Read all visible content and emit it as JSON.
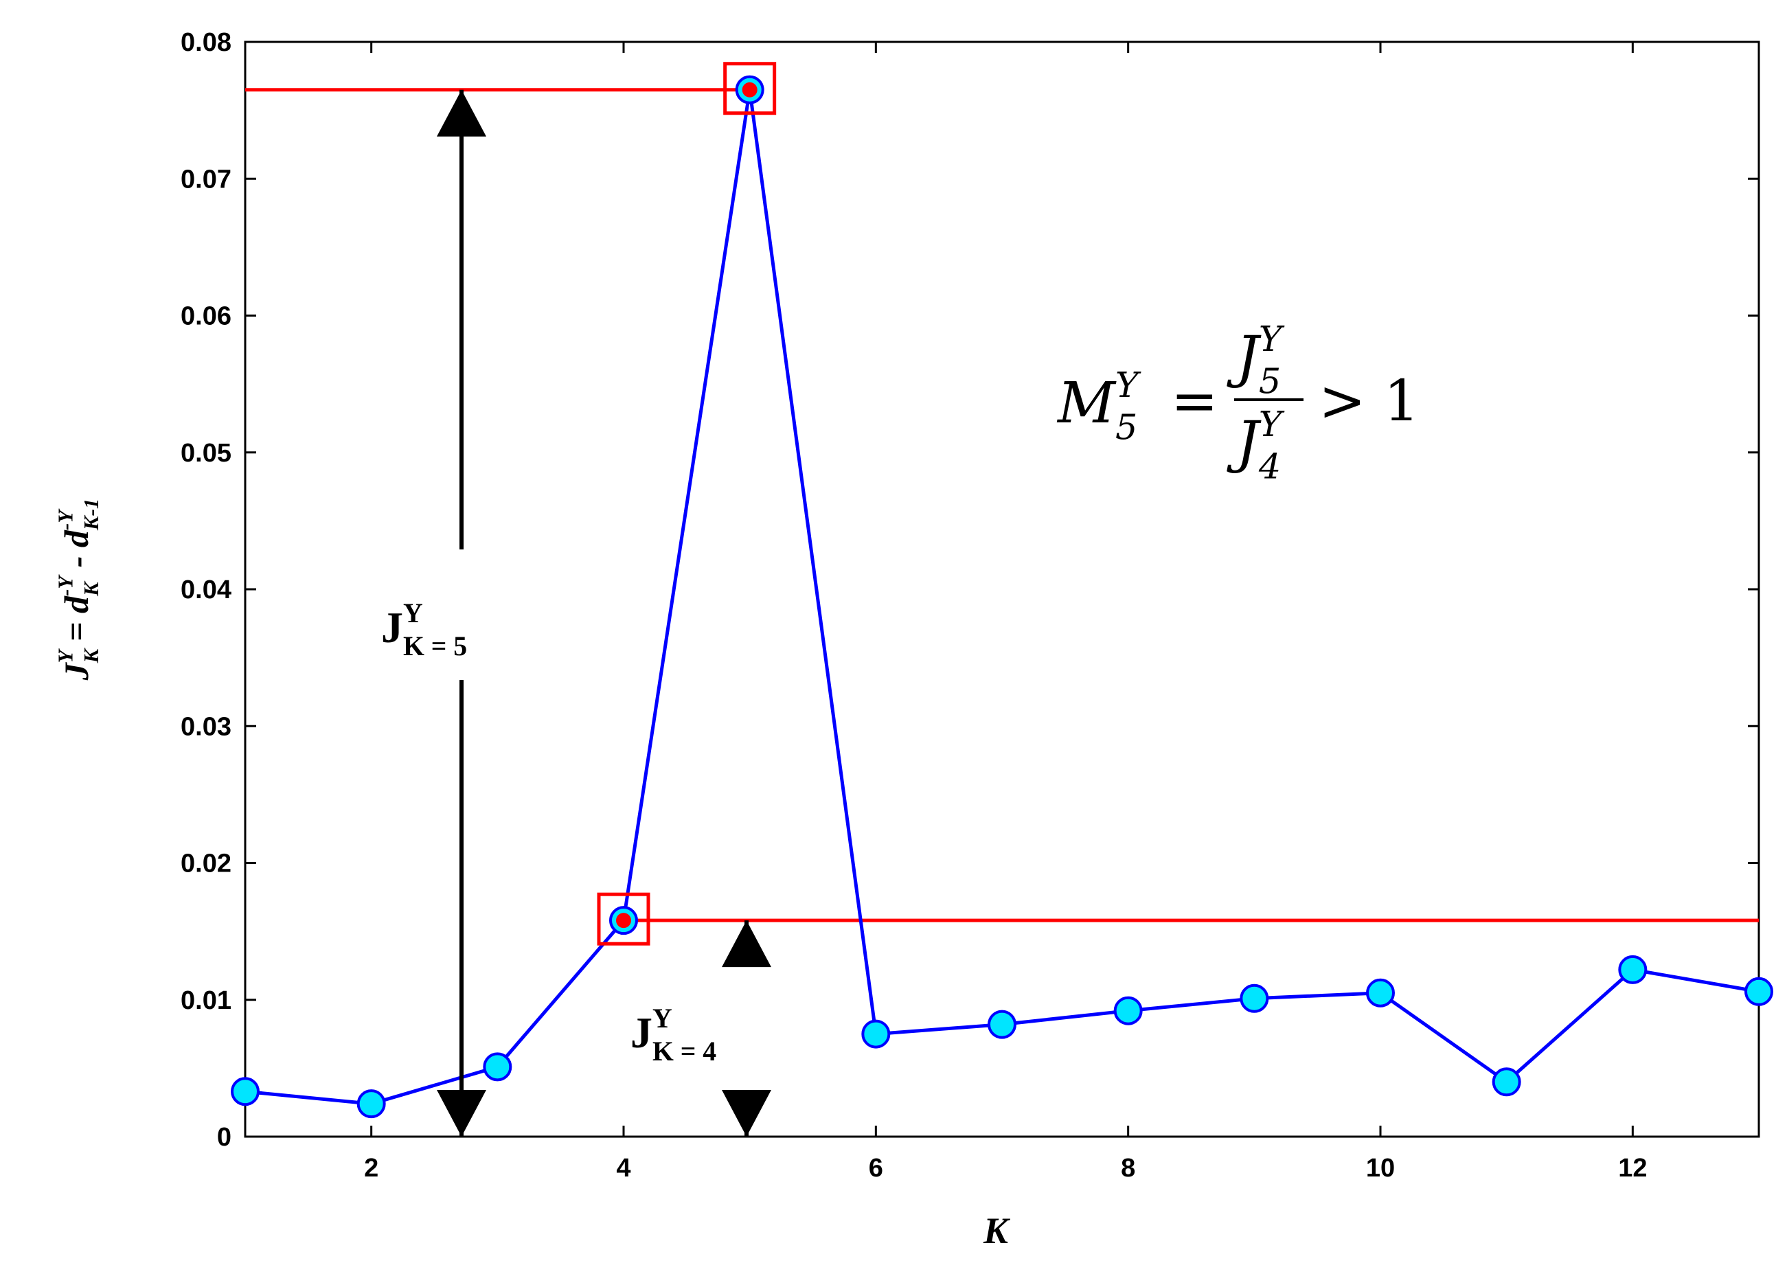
{
  "chart_data": {
    "type": "line",
    "x_label": "K",
    "y_label": [
      {
        "text": "J",
        "pos": "base"
      },
      {
        "text": "K",
        "pos": "sub"
      },
      {
        "text": "Y",
        "pos": "sup"
      },
      {
        "text": " = d",
        "pos": "base"
      },
      {
        "text": "K",
        "pos": "sub"
      },
      {
        "text": "-Y",
        "pos": "sup"
      },
      {
        "text": " - d",
        "pos": "base"
      },
      {
        "text": "K-1",
        "pos": "sub"
      },
      {
        "text": "-Y",
        "pos": "sup"
      }
    ],
    "x": [
      1,
      2,
      3,
      4,
      5,
      6,
      7,
      8,
      9,
      10,
      11,
      12,
      13
    ],
    "series": [
      {
        "color": "#0000ff",
        "marker_color": "#00e5ff",
        "values": [
          0.0033,
          0.0024,
          0.0051,
          0.0158,
          0.0765,
          0.0075,
          0.0082,
          0.0092,
          0.0101,
          0.0105,
          0.004,
          0.0122,
          0.0106
        ]
      }
    ],
    "highlight_color": "#ff0000",
    "highlight_points": [
      3,
      4
    ],
    "xlim": [
      1,
      13
    ],
    "xticks": [
      2,
      4,
      6,
      8,
      10,
      12
    ],
    "ylim": [
      0,
      0.08
    ],
    "yticks": [
      0,
      0.01,
      0.02,
      0.03,
      0.04,
      0.05,
      0.06,
      0.07,
      0.08
    ],
    "annotations": [
      [
        {
          "text": "J",
          "pos": "base"
        },
        {
          "text": "K = 5",
          "pos": "sub"
        },
        {
          "text": "Y",
          "pos": "sup"
        }
      ],
      [
        {
          "text": "J",
          "pos": "base"
        },
        {
          "text": "K = 4",
          "pos": "sub"
        },
        {
          "text": "Y",
          "pos": "sup"
        }
      ]
    ],
    "formula": {
      "lhs": [
        {
          "text": "M",
          "pos": "base"
        },
        {
          "text": "5",
          "pos": "sub"
        },
        {
          "text": "Y",
          "pos": "sup"
        }
      ],
      "equals": "=",
      "numerator": [
        {
          "text": "J",
          "pos": "base"
        },
        {
          "text": "5",
          "pos": "sub"
        },
        {
          "text": "Y",
          "pos": "sup"
        }
      ],
      "denominator": [
        {
          "text": "J",
          "pos": "base"
        },
        {
          "text": "4",
          "pos": "sub"
        },
        {
          "text": "Y",
          "pos": "sup"
        }
      ],
      "rhs": "> 1"
    }
  }
}
